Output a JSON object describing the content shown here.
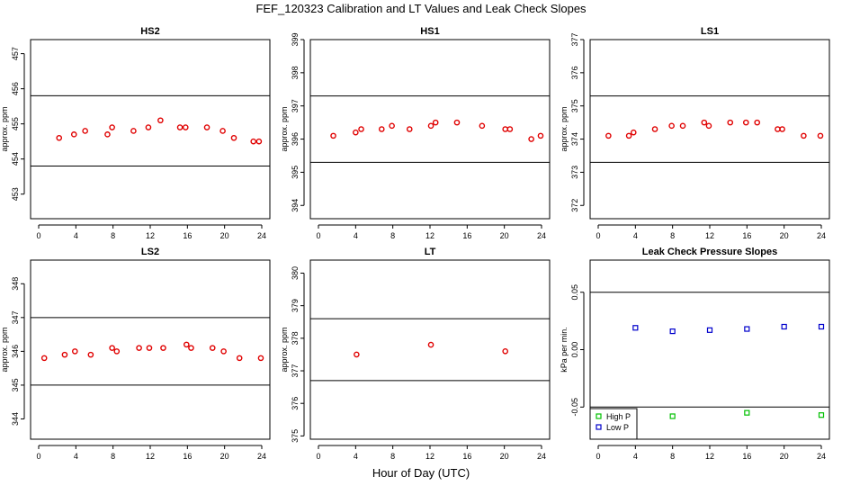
{
  "page": {
    "title": "FEF_120323  Calibration and LT Values and Leak Check Slopes",
    "xlabel": "Hour of Day (UTC)"
  },
  "colors": {
    "cal": "#e00000",
    "high_p": "#00c000",
    "low_p": "#0000cc",
    "axes": "#000000"
  },
  "chart_data": [
    {
      "type": "scatter",
      "title": "HS2",
      "ylabel": "approx. ppm",
      "xlim": [
        0,
        24
      ],
      "xticks": [
        0,
        4,
        8,
        12,
        16,
        20,
        24
      ],
      "ylim": [
        452.3,
        457.4
      ],
      "yticks": [
        453,
        454,
        455,
        456,
        457
      ],
      "hlines": [
        453.8,
        455.8
      ],
      "series": [
        {
          "marker": "circle",
          "color": "#e00000",
          "x": [
            2.2,
            3.8,
            5.0,
            7.4,
            7.9,
            10.2,
            11.8,
            13.1,
            15.2,
            15.8,
            18.1,
            19.8,
            21.0,
            23.1,
            23.7
          ],
          "y": [
            454.6,
            454.7,
            454.8,
            454.7,
            454.9,
            454.8,
            454.9,
            455.1,
            454.9,
            454.9,
            454.9,
            454.8,
            454.6,
            454.5,
            454.5
          ]
        }
      ]
    },
    {
      "type": "scatter",
      "title": "HS1",
      "ylabel": "approx. ppm",
      "xlim": [
        0,
        24
      ],
      "xticks": [
        0,
        4,
        8,
        12,
        16,
        20,
        24
      ],
      "ylim": [
        393.6,
        399.0
      ],
      "yticks": [
        394,
        395,
        396,
        397,
        398,
        399
      ],
      "hlines": [
        395.3,
        397.3
      ],
      "series": [
        {
          "marker": "circle",
          "color": "#e00000",
          "x": [
            1.6,
            4.0,
            4.6,
            6.8,
            7.9,
            9.8,
            12.1,
            12.6,
            14.9,
            17.6,
            20.1,
            20.6,
            22.9,
            23.9
          ],
          "y": [
            396.1,
            396.2,
            396.3,
            396.3,
            396.4,
            396.3,
            396.4,
            396.5,
            396.5,
            396.4,
            396.3,
            396.3,
            396.0,
            396.1
          ]
        }
      ]
    },
    {
      "type": "scatter",
      "title": "LS1",
      "ylabel": "approx. ppm",
      "xlim": [
        0,
        24
      ],
      "xticks": [
        0,
        4,
        8,
        12,
        16,
        20,
        24
      ],
      "ylim": [
        371.6,
        377.0
      ],
      "yticks": [
        372,
        373,
        374,
        375,
        376,
        377
      ],
      "hlines": [
        373.3,
        375.3
      ],
      "series": [
        {
          "marker": "circle",
          "color": "#e00000",
          "x": [
            1.1,
            3.3,
            3.8,
            6.1,
            7.9,
            9.1,
            11.4,
            11.9,
            14.2,
            15.9,
            17.1,
            19.3,
            19.8,
            22.1,
            23.9
          ],
          "y": [
            374.1,
            374.1,
            374.2,
            374.3,
            374.4,
            374.4,
            374.5,
            374.4,
            374.5,
            374.5,
            374.5,
            374.3,
            374.3,
            374.1,
            374.1
          ]
        }
      ]
    },
    {
      "type": "scatter",
      "title": "LS2",
      "ylabel": "approx. ppm",
      "xlim": [
        0,
        24
      ],
      "xticks": [
        0,
        4,
        8,
        12,
        16,
        20,
        24
      ],
      "ylim": [
        343.4,
        348.7
      ],
      "yticks": [
        344,
        345,
        346,
        347,
        348
      ],
      "hlines": [
        345.0,
        347.0
      ],
      "series": [
        {
          "marker": "circle",
          "color": "#e00000",
          "x": [
            0.6,
            2.8,
            3.9,
            5.6,
            7.9,
            8.4,
            10.8,
            11.9,
            13.4,
            15.9,
            16.4,
            18.7,
            19.9,
            21.6,
            23.9
          ],
          "y": [
            345.8,
            345.9,
            346.0,
            345.9,
            346.1,
            346.0,
            346.1,
            346.1,
            346.1,
            346.2,
            346.1,
            346.1,
            346.0,
            345.8,
            345.8
          ]
        }
      ]
    },
    {
      "type": "scatter",
      "title": "LT",
      "ylabel": "approx. ppm",
      "xlim": [
        0,
        24
      ],
      "xticks": [
        0,
        4,
        8,
        12,
        16,
        20,
        24
      ],
      "ylim": [
        374.9,
        380.4
      ],
      "yticks": [
        375,
        376,
        377,
        378,
        379,
        380
      ],
      "hlines": [
        376.7,
        378.6
      ],
      "series": [
        {
          "marker": "circle",
          "color": "#e00000",
          "x": [
            4.1,
            12.1,
            20.1
          ],
          "y": [
            377.5,
            377.8,
            377.6
          ]
        }
      ]
    },
    {
      "type": "scatter",
      "title": "Leak Check Pressure Slopes",
      "ylabel": "kPa per min.",
      "xlim": [
        0,
        24
      ],
      "xticks": [
        0,
        4,
        8,
        12,
        16,
        20,
        24
      ],
      "ylim": [
        -0.078,
        0.078
      ],
      "yticks": [
        -0.05,
        0.0,
        0.05
      ],
      "yticklabels": [
        "-0.05",
        "0.00",
        "0.05"
      ],
      "hlines": [
        -0.05,
        0.05
      ],
      "legend": {
        "position": "bottom-left"
      },
      "series": [
        {
          "name": "High P",
          "marker": "square",
          "color": "#00c000",
          "x": [
            8.0,
            16.0,
            24.0
          ],
          "y": [
            -0.058,
            -0.055,
            -0.057
          ]
        },
        {
          "name": "Low P",
          "marker": "square",
          "color": "#0000cc",
          "x": [
            4.0,
            8.0,
            12.0,
            16.0,
            20.0,
            24.0
          ],
          "y": [
            0.019,
            0.016,
            0.017,
            0.018,
            0.02,
            0.02
          ]
        }
      ]
    }
  ]
}
